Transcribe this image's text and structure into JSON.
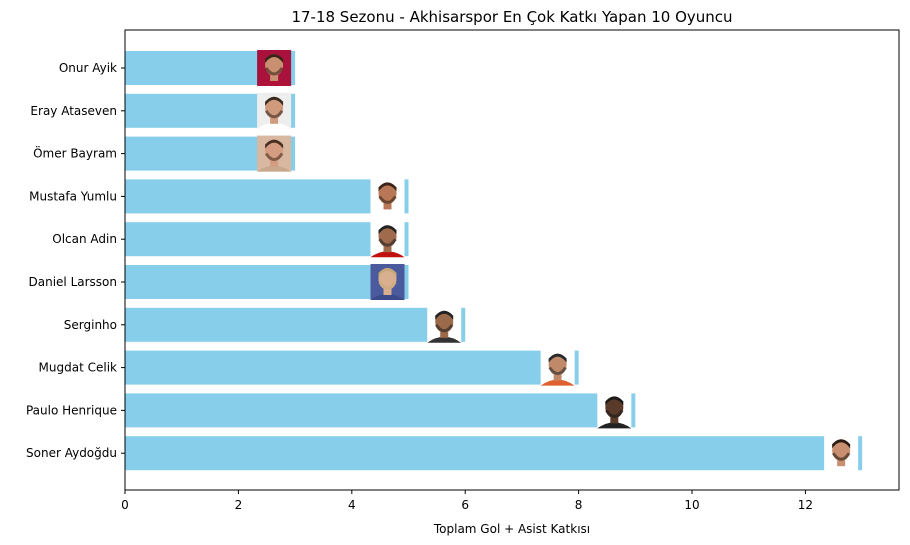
{
  "chart_data": {
    "type": "bar",
    "orientation": "horizontal",
    "title": "17-18 Sezonu - Akhisarspor En Çok Katkı Yapan 10 Oyuncu",
    "xlabel": "Toplam Gol + Asist Katkısı",
    "ylabel": "",
    "xlim": [
      0,
      13.65
    ],
    "xticks": [
      0,
      2,
      4,
      6,
      8,
      10,
      12
    ],
    "grid": false,
    "bar_color": "#87ceeb",
    "categories": [
      "Onur Ayik",
      "Eray Ataseven",
      "Ömer Bayram",
      "Mustafa Yumlu",
      "Olcan Adin",
      "Daniel Larsson",
      "Serginho",
      "Mugdat Celik",
      "Paulo Henrique",
      "Soner Aydoğdu"
    ],
    "values": [
      3,
      3,
      3,
      5,
      5,
      5,
      6,
      8,
      9,
      13
    ],
    "player_photos": [
      {
        "kit": "#b0123a",
        "bg": "#a9123c",
        "skin": "#c89070",
        "hair": "#3a2418"
      },
      {
        "kit": "#ffffff",
        "bg": "#eeeeee",
        "skin": "#d09a7c",
        "hair": "#3a2a20"
      },
      {
        "kit": "#c8a88c",
        "bg": "#d8b8a0",
        "skin": "#d49c80",
        "hair": "#4a3020"
      },
      {
        "kit": "#ffffff",
        "bg": "#ffffff",
        "skin": "#b87858",
        "hair": "#3a2418"
      },
      {
        "kit": "#c01010",
        "bg": "#ffffff",
        "skin": "#a06a4c",
        "hair": "#222222"
      },
      {
        "kit": "#3a4a8a",
        "bg": "#4a5a9c",
        "skin": "#d8b090",
        "hair": "#c8a878"
      },
      {
        "kit": "#333333",
        "bg": "#ffffff",
        "skin": "#9a6a4a",
        "hair": "#222222"
      },
      {
        "kit": "#e06030",
        "bg": "#ffffff",
        "skin": "#c08a6a",
        "hair": "#2a2a2a"
      },
      {
        "kit": "#222222",
        "bg": "#ffffff",
        "skin": "#5a3a28",
        "hair": "#1a1a1a"
      },
      {
        "kit": "#ffffff",
        "bg": "#ffffff",
        "skin": "#c89070",
        "hair": "#2a1a12"
      }
    ]
  }
}
